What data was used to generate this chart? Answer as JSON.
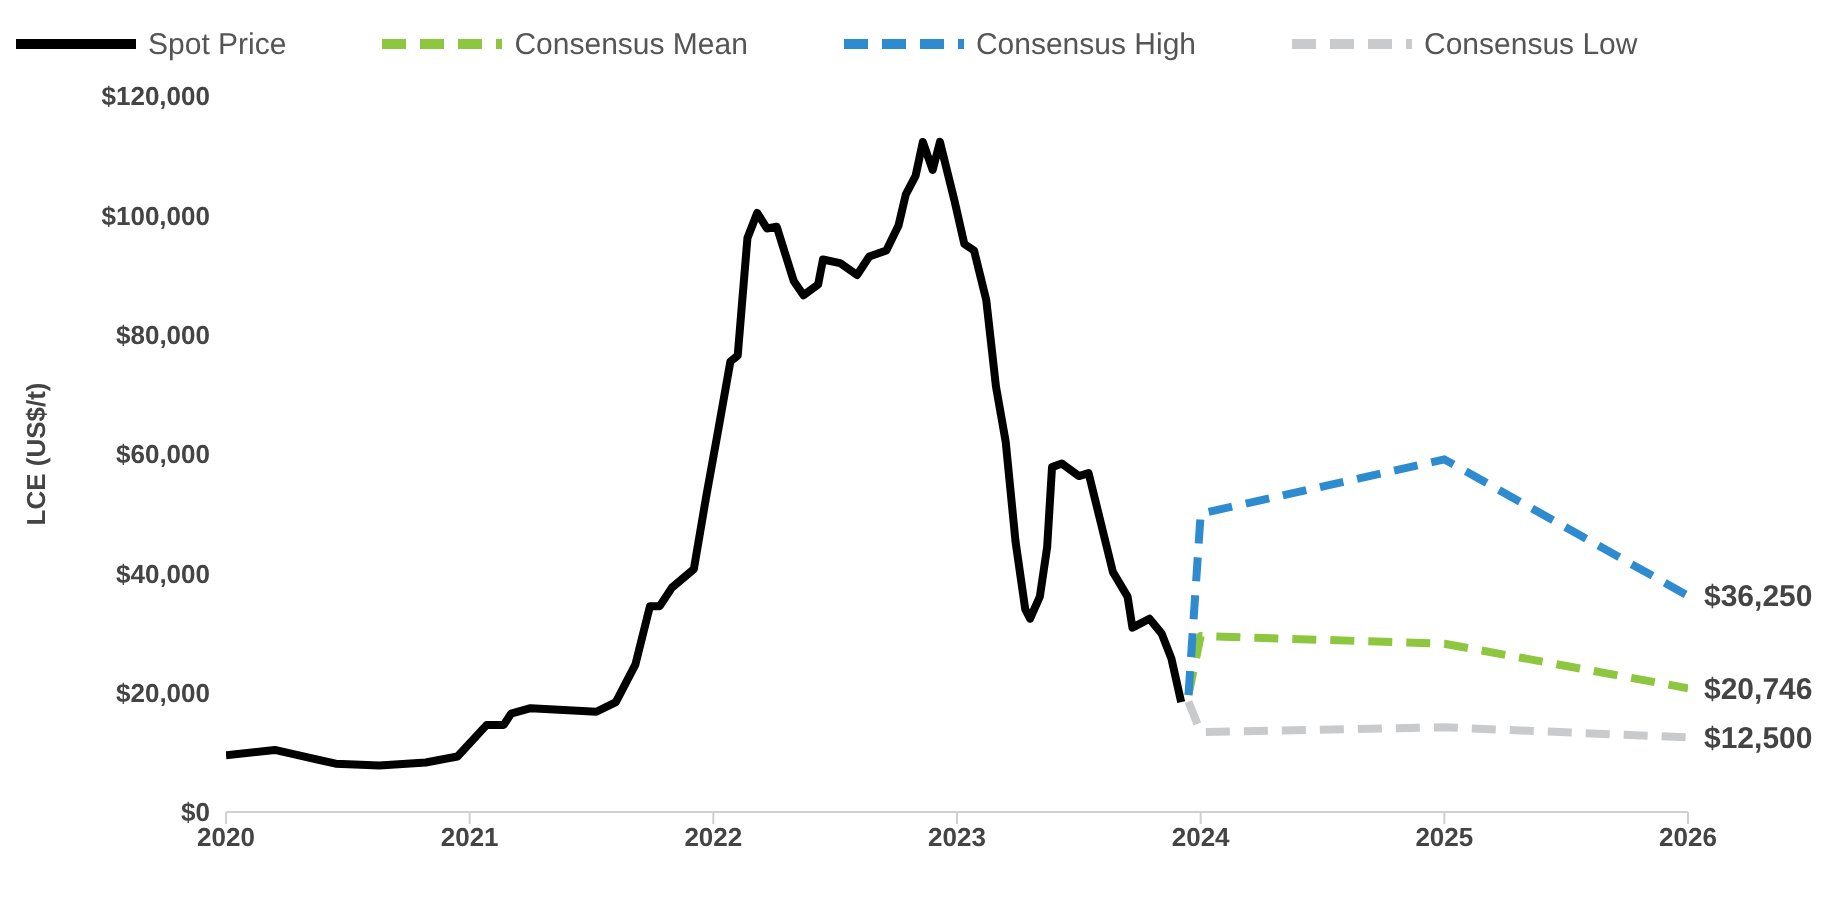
{
  "chart_data": {
    "type": "line",
    "ylabel": "LCE (US$/t)",
    "xlim": [
      2020,
      2026
    ],
    "xticks": [
      2020,
      2021,
      2022,
      2023,
      2024,
      2025,
      2026
    ],
    "ylim": [
      0,
      120000
    ],
    "yticks": [
      {
        "value": 0,
        "label": "$0"
      },
      {
        "value": 20000,
        "label": "$20,000"
      },
      {
        "value": 40000,
        "label": "$40,000"
      },
      {
        "value": 60000,
        "label": "$60,000"
      },
      {
        "value": 80000,
        "label": "$80,000"
      },
      {
        "value": 100000,
        "label": "$100,000"
      },
      {
        "value": 120000,
        "label": "$120,000"
      }
    ],
    "grid": false,
    "legend": "top",
    "marker": "none",
    "series": [
      {
        "name": "Spot Price",
        "color": "#000000",
        "line_style": "solid",
        "x": [
          2020.0,
          2020.2,
          2020.34,
          2020.45,
          2020.63,
          2020.82,
          2020.95,
          2021.07,
          2021.14,
          2021.17,
          2021.25,
          2021.52,
          2021.6,
          2021.68,
          2021.74,
          2021.78,
          2021.83,
          2021.92,
          2021.97,
          2022.02,
          2022.07,
          2022.1,
          2022.14,
          2022.18,
          2022.22,
          2022.26,
          2022.33,
          2022.37,
          2022.43,
          2022.45,
          2022.52,
          2022.59,
          2022.64,
          2022.71,
          2022.76,
          2022.79,
          2022.83,
          2022.86,
          2022.9,
          2022.93,
          2022.99,
          2023.03,
          2023.07,
          2023.12,
          2023.16,
          2023.2,
          2023.24,
          2023.28,
          2023.3,
          2023.34,
          2023.37,
          2023.39,
          2023.43,
          2023.5,
          2023.54,
          2023.59,
          2023.64,
          2023.7,
          2023.72,
          2023.79,
          2023.84,
          2023.88,
          2023.92
        ],
        "values": [
          9500,
          10400,
          9100,
          8100,
          7800,
          8300,
          9300,
          14600,
          14600,
          16500,
          17400,
          16800,
          18400,
          24700,
          34500,
          34500,
          37600,
          40700,
          52700,
          64000,
          75500,
          76500,
          96200,
          100400,
          97800,
          98100,
          89000,
          86600,
          88400,
          92600,
          92000,
          90000,
          93100,
          94100,
          98300,
          103500,
          106600,
          112300,
          107600,
          112300,
          102400,
          95200,
          94100,
          85800,
          71300,
          62000,
          45400,
          34000,
          32400,
          36100,
          44400,
          57800,
          58400,
          56300,
          56800,
          48500,
          40200,
          36100,
          30900,
          32400,
          29900,
          25700,
          18400
        ]
      },
      {
        "name": "Consensus Mean",
        "color": "#8dc63f",
        "line_style": "dashed",
        "x": [
          2023.95,
          2024,
          2025,
          2026
        ],
        "values": [
          19600,
          29500,
          28200,
          20746
        ],
        "value_labels": [
          null,
          null,
          null,
          "$20,746"
        ]
      },
      {
        "name": "Consensus High",
        "color": "#2e8bd0",
        "line_style": "dashed",
        "x": [
          2023.95,
          2024,
          2025,
          2026
        ],
        "values": [
          19600,
          50000,
          59100,
          36250
        ],
        "value_labels": [
          null,
          null,
          null,
          "$36,250"
        ]
      },
      {
        "name": "Consensus Low",
        "color": "#c8cacc",
        "line_style": "dashed",
        "x": [
          2023.95,
          2024,
          2025,
          2026
        ],
        "values": [
          18500,
          13400,
          14200,
          12500
        ],
        "value_labels": [
          null,
          null,
          null,
          "$12,500"
        ]
      }
    ]
  }
}
